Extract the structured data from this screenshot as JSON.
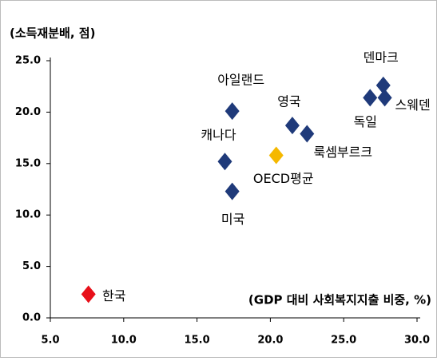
{
  "chart_data": {
    "type": "scatter",
    "y_label": "(소득재분배, 점)",
    "x_label": "(GDP 대비 사회복지지출 비중, %)",
    "labels": [
      "한국",
      "아일랜드",
      "캐나다",
      "미국",
      "영국",
      "룩셈부르크",
      "OECD평균",
      "덴마크",
      "독일",
      "스웨덴"
    ],
    "x": [
      7.6,
      17.4,
      16.9,
      17.4,
      21.5,
      22.5,
      20.4,
      27.7,
      26.8,
      27.8
    ],
    "values": [
      2.3,
      20.1,
      15.2,
      12.3,
      18.7,
      17.9,
      15.8,
      22.6,
      21.4,
      21.4
    ],
    "colors": [
      "#e8101a",
      "#1f3a7a",
      "#1f3a7a",
      "#1f3a7a",
      "#1f3a7a",
      "#1f3a7a",
      "#f5b800",
      "#1f3a7a",
      "#1f3a7a",
      "#1f3a7a"
    ],
    "xlim": [
      5,
      30
    ],
    "xticks": [
      {
        "value": 5,
        "label": "5.0"
      },
      {
        "value": 10,
        "label": "10.0"
      },
      {
        "value": 15,
        "label": "15.0"
      },
      {
        "value": 20,
        "label": "20.0"
      },
      {
        "value": 25,
        "label": "25.0"
      },
      {
        "value": 30,
        "label": "30.0"
      }
    ],
    "ylim": [
      0,
      25
    ],
    "yticks": [
      {
        "value": 0,
        "label": "0.0"
      },
      {
        "value": 5,
        "label": "5.0"
      },
      {
        "value": 10,
        "label": "10.0"
      },
      {
        "value": 15,
        "label": "15.0"
      },
      {
        "value": 20,
        "label": "20.0"
      },
      {
        "value": 25,
        "label": "25.0"
      }
    ],
    "grid": false
  }
}
